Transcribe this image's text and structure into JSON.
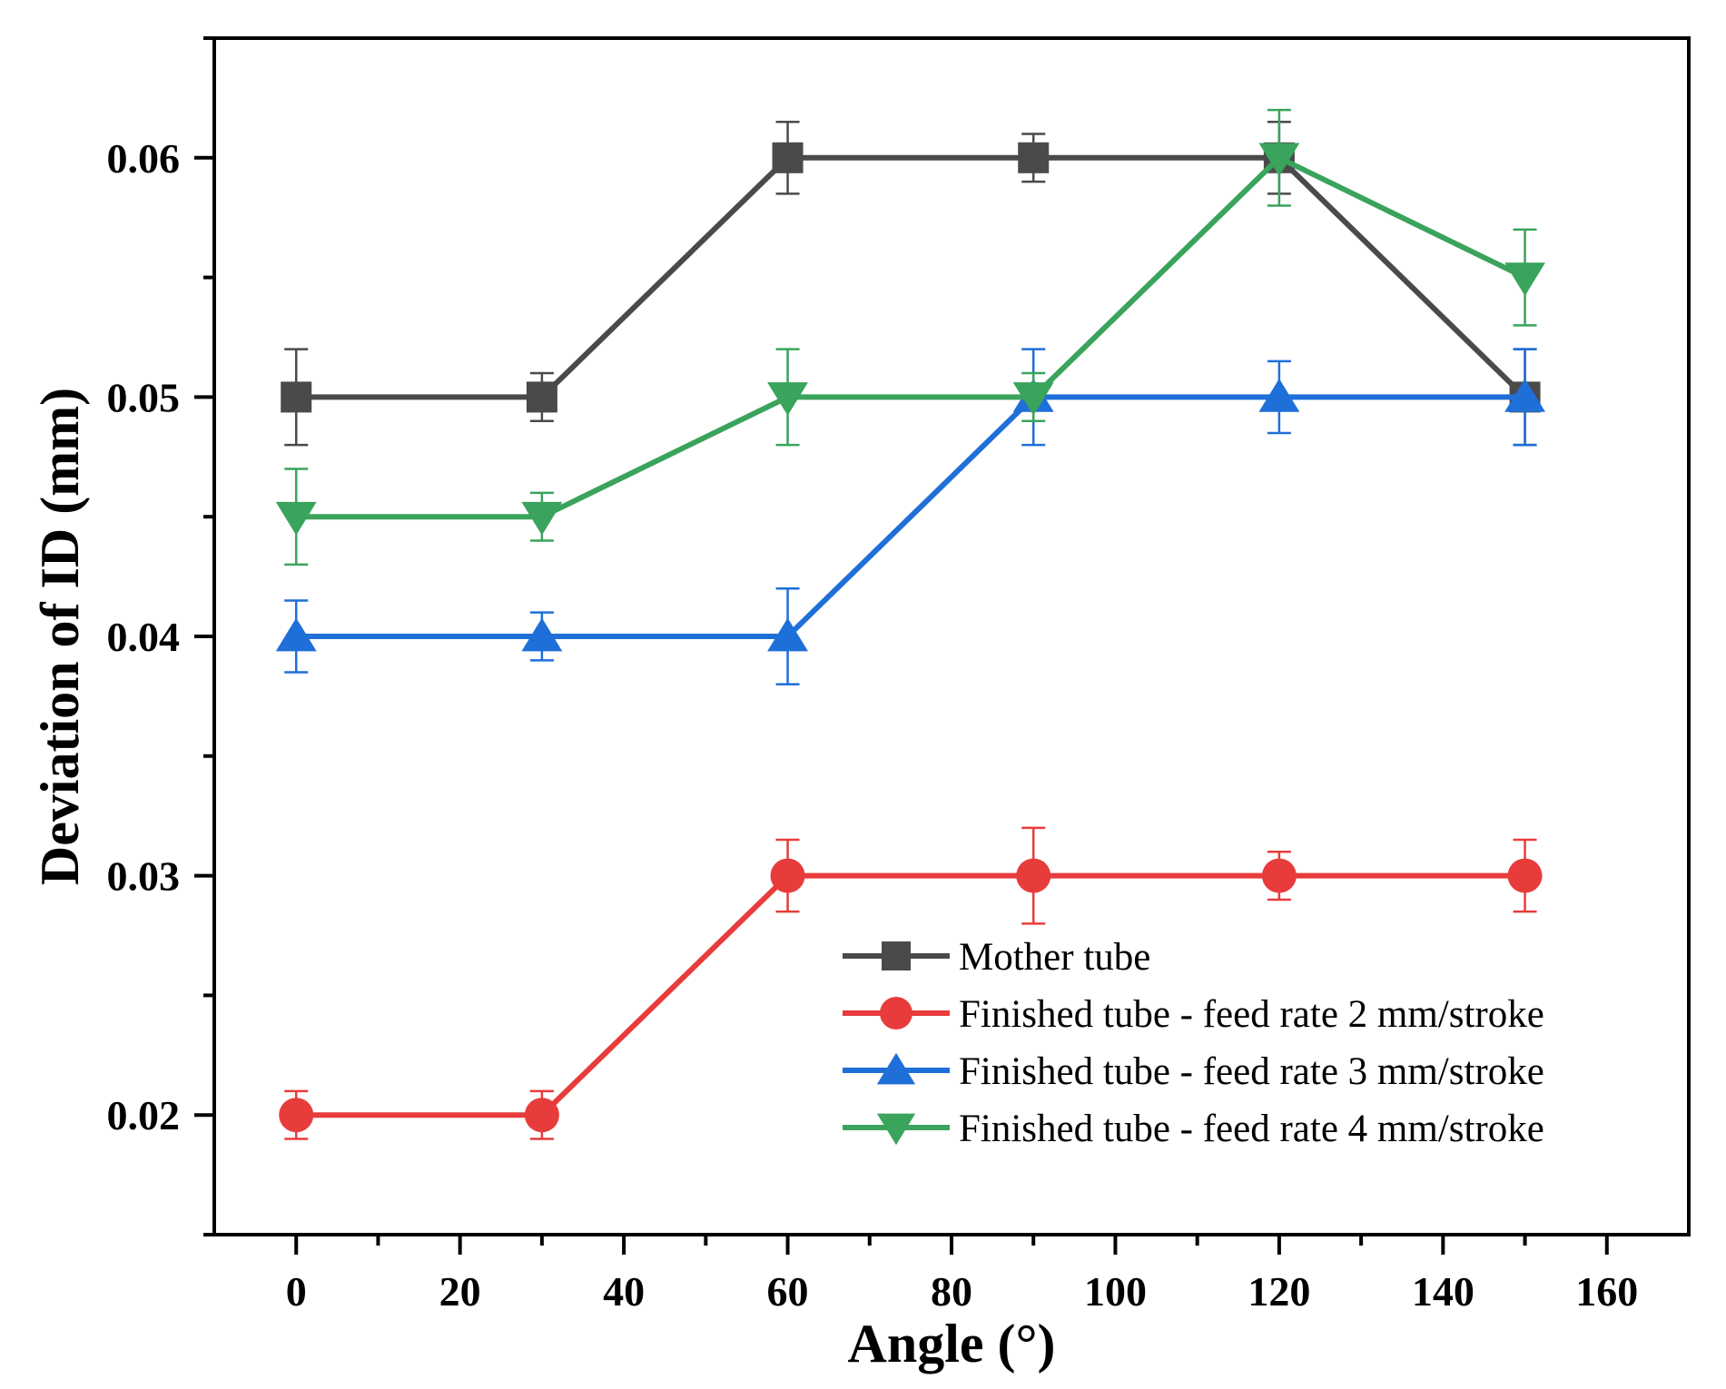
{
  "chart_data": {
    "type": "line",
    "xlabel": "Angle (°)",
    "ylabel": "Deviation of ID (mm)",
    "xlim": [
      -10,
      170
    ],
    "ylim": [
      0.015,
      0.065
    ],
    "xticks": [
      0,
      20,
      40,
      60,
      80,
      100,
      120,
      140,
      160
    ],
    "xtick_labels": [
      "0",
      "20",
      "40",
      "60",
      "80",
      "100",
      "120",
      "140",
      "160"
    ],
    "yticks": [
      0.02,
      0.03,
      0.04,
      0.05,
      0.06
    ],
    "ytick_labels": [
      "0.02",
      "0.03",
      "0.04",
      "0.05",
      "0.06"
    ],
    "x": [
      0,
      30,
      60,
      90,
      120,
      150
    ],
    "legend_position": "bottom-right",
    "series": [
      {
        "name": "Mother tube",
        "color": "#4a4a4a",
        "marker": "square",
        "values": [
          0.05,
          0.05,
          0.06,
          0.06,
          0.06,
          0.05
        ],
        "errors": [
          0.002,
          0.001,
          0.0015,
          0.001,
          0.0015,
          0.002
        ]
      },
      {
        "name": "Finished tube - feed rate 2 mm/stroke",
        "color": "#e83c3c",
        "marker": "circle",
        "values": [
          0.02,
          0.02,
          0.03,
          0.03,
          0.03,
          0.03
        ],
        "errors": [
          0.001,
          0.001,
          0.0015,
          0.002,
          0.001,
          0.0015
        ]
      },
      {
        "name": "Finished tube - feed rate 3 mm/stroke",
        "color": "#1f6fd8",
        "marker": "triangle-up",
        "values": [
          0.04,
          0.04,
          0.04,
          0.05,
          0.05,
          0.05
        ],
        "errors": [
          0.0015,
          0.001,
          0.002,
          0.002,
          0.0015,
          0.002
        ]
      },
      {
        "name": "Finished tube - feed rate 4 mm/stroke",
        "color": "#3aa35c",
        "marker": "triangle-down",
        "values": [
          0.045,
          0.045,
          0.05,
          0.05,
          0.06,
          0.055
        ],
        "errors": [
          0.002,
          0.001,
          0.002,
          0.001,
          0.002,
          0.002
        ]
      }
    ]
  }
}
